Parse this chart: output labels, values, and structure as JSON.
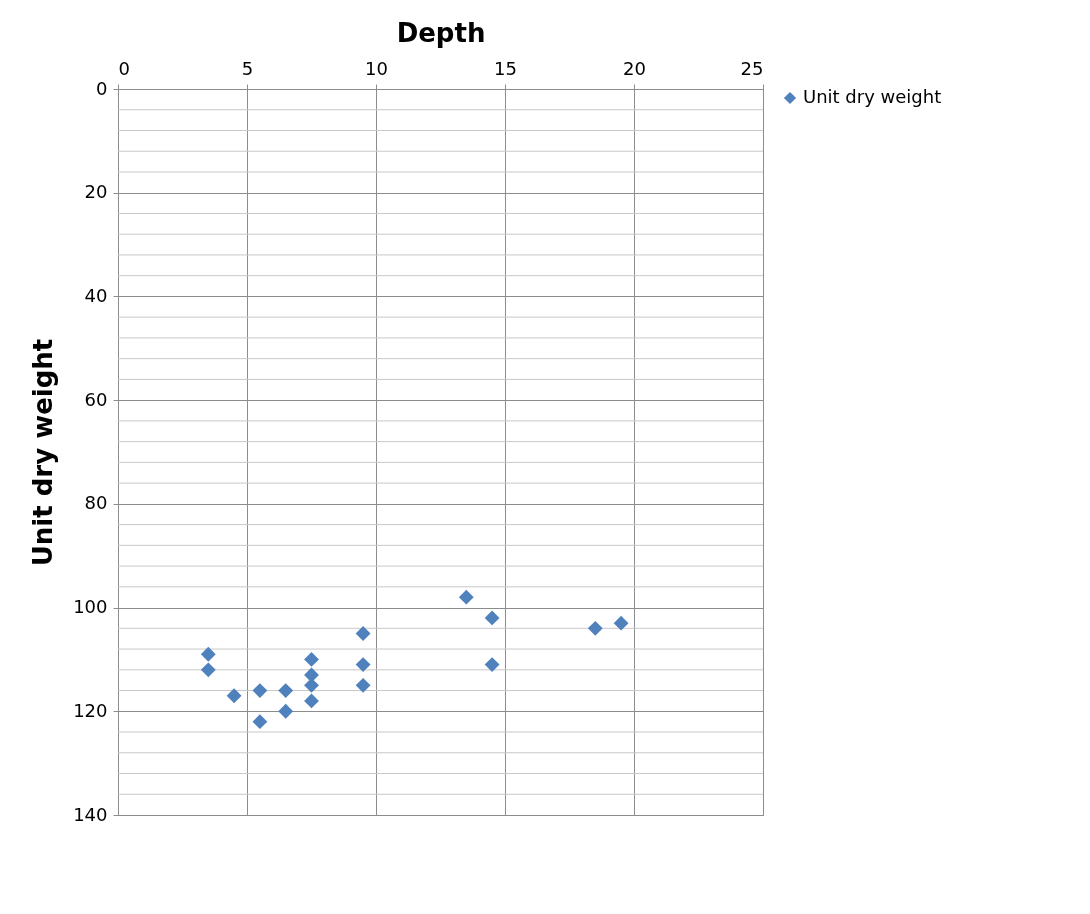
{
  "chart_data": {
    "type": "scatter",
    "xlabel": "Depth",
    "ylabel": "Unit dry weight",
    "x": [
      3.5,
      3.5,
      4.5,
      5.5,
      5.5,
      6.5,
      6.5,
      7.5,
      7.5,
      7.5,
      7.5,
      9.5,
      9.5,
      9.5,
      13.5,
      14.5,
      14.5,
      18.5,
      19.5
    ],
    "series": [
      {
        "name": "Unit dry weight",
        "color": "#4f81bd",
        "values": [
          109,
          112,
          117,
          116,
          122,
          116,
          120,
          110,
          113,
          115,
          118,
          105,
          111,
          115,
          98,
          102,
          111,
          104,
          103
        ]
      }
    ],
    "xlim": [
      0,
      25
    ],
    "xticks": [
      0,
      5,
      10,
      15,
      20,
      25
    ],
    "ylim": [
      140,
      0
    ],
    "yticks": [
      0,
      20,
      40,
      60,
      80,
      100,
      120,
      140
    ],
    "grid": true,
    "legend": "right",
    "marker": "diamond"
  }
}
